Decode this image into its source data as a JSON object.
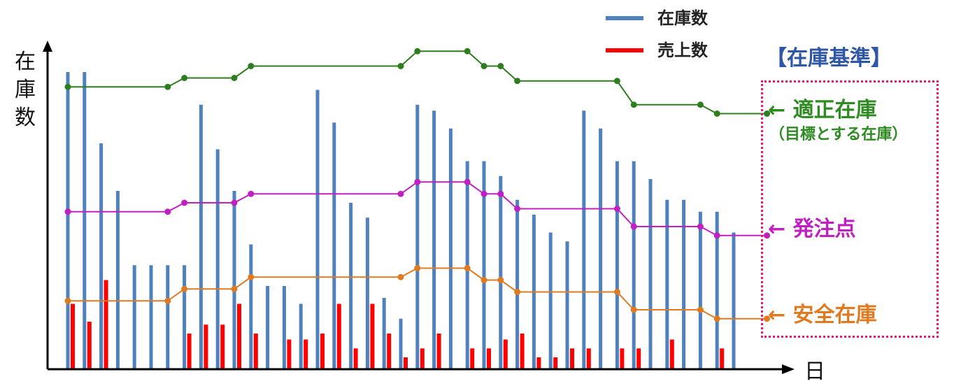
{
  "chart_data": {
    "type": "bar",
    "ylabel": "在庫数",
    "xlabel": "日",
    "legend": {
      "position": "top-center",
      "items": [
        {
          "label": "在庫数",
          "color": "#4f81bd"
        },
        {
          "label": "売上数",
          "color": "#ff0000"
        }
      ]
    },
    "ylim": [
      0,
      100
    ],
    "series": [
      {
        "name": "在庫数",
        "kind": "bar",
        "color": "#4f81bd",
        "values": [
          100,
          100,
          76,
          60,
          35,
          35,
          35,
          35,
          89,
          74,
          60,
          42,
          28,
          28,
          22,
          94,
          83,
          56,
          51,
          24,
          17,
          89,
          87,
          81,
          70,
          70,
          65,
          57,
          52,
          46,
          43,
          87,
          81,
          70,
          70,
          64,
          57,
          57,
          53,
          53,
          46
        ]
      },
      {
        "name": "売上数",
        "kind": "bar",
        "color": "#ff0000",
        "values": [
          22,
          16,
          30,
          0,
          0,
          0,
          0,
          12,
          15,
          15,
          22,
          12,
          0,
          10,
          10,
          12,
          22,
          7,
          22,
          12,
          4,
          7,
          12,
          0,
          7,
          7,
          10,
          12,
          4,
          4,
          7,
          7,
          0,
          7,
          7,
          0,
          10,
          0,
          0,
          7,
          0
        ]
      },
      {
        "name": "適正在庫",
        "kind": "line",
        "color": "#2e7d1e",
        "points": [
          [
            1,
            95
          ],
          [
            7,
            95
          ],
          [
            8,
            98
          ],
          [
            11,
            98
          ],
          [
            12,
            102
          ],
          [
            21,
            102
          ],
          [
            22,
            107
          ],
          [
            25,
            107
          ],
          [
            26,
            102
          ],
          [
            27,
            102
          ],
          [
            28,
            97
          ],
          [
            34,
            97
          ],
          [
            35,
            89
          ],
          [
            39,
            89
          ],
          [
            40,
            86
          ],
          [
            43,
            86
          ]
        ]
      },
      {
        "name": "発注点",
        "kind": "line",
        "color": "#c020c0",
        "points": [
          [
            1,
            53
          ],
          [
            7,
            53
          ],
          [
            8,
            56
          ],
          [
            11,
            56
          ],
          [
            12,
            59
          ],
          [
            21,
            59
          ],
          [
            22,
            63
          ],
          [
            25,
            63
          ],
          [
            26,
            59
          ],
          [
            27,
            59
          ],
          [
            28,
            54
          ],
          [
            34,
            54
          ],
          [
            35,
            48
          ],
          [
            39,
            48
          ],
          [
            40,
            45
          ],
          [
            43,
            45
          ]
        ]
      },
      {
        "name": "安全在庫",
        "kind": "line",
        "color": "#e07a20",
        "points": [
          [
            1,
            23
          ],
          [
            7,
            23
          ],
          [
            8,
            27
          ],
          [
            11,
            27
          ],
          [
            12,
            31
          ],
          [
            21,
            31
          ],
          [
            22,
            34
          ],
          [
            25,
            34
          ],
          [
            26,
            30
          ],
          [
            27,
            30
          ],
          [
            28,
            26
          ],
          [
            34,
            26
          ],
          [
            35,
            20
          ],
          [
            39,
            20
          ],
          [
            40,
            17
          ],
          [
            43,
            17
          ]
        ]
      }
    ]
  },
  "annotations": {
    "title": "【在庫基準】",
    "optimal": "← 適正在庫",
    "optimal_sub": "（目標とする在庫）",
    "reorder": "← 発注点",
    "safety": "← 安全在庫"
  }
}
